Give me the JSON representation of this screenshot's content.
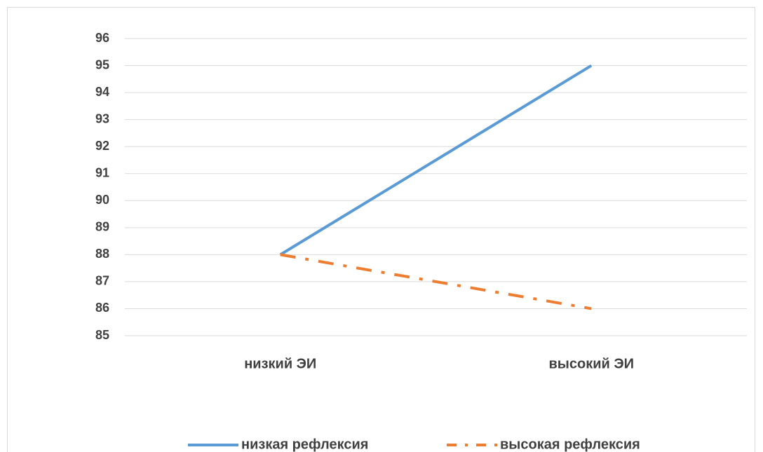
{
  "chart_data": {
    "type": "line",
    "categories": [
      "низкий ЭИ",
      "высокий ЭИ"
    ],
    "series": [
      {
        "name": "низкая рефлексия",
        "color": "#5b9bd5",
        "style": "solid",
        "values": [
          88,
          95
        ]
      },
      {
        "name": "высокая рефлексия",
        "color": "#ed7d31",
        "style": "dashdot",
        "values": [
          88,
          86
        ]
      }
    ],
    "ylim": [
      85,
      96
    ],
    "yticks": [
      85,
      86,
      87,
      88,
      89,
      90,
      91,
      92,
      93,
      94,
      95,
      96
    ],
    "grid": true,
    "legend": "bottom"
  }
}
